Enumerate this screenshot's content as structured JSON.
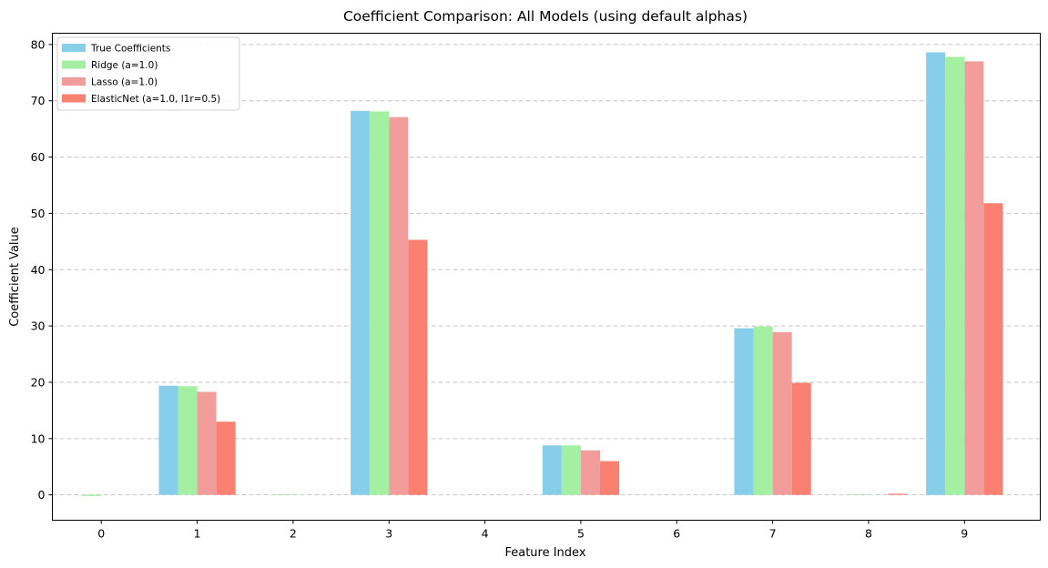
{
  "chart_data": {
    "type": "bar",
    "title": "Coefficient Comparison: All Models (using default alphas)",
    "xlabel": "Feature Index",
    "ylabel": "Coefficient Value",
    "categories": [
      "0",
      "1",
      "2",
      "3",
      "4",
      "5",
      "6",
      "7",
      "8",
      "9"
    ],
    "ylim": [
      -4.5,
      82
    ],
    "yticks": [
      0,
      10,
      20,
      30,
      40,
      50,
      60,
      70,
      80
    ],
    "grid": "y",
    "legend_position": "top-left",
    "series": [
      {
        "name": "True Coefficients",
        "color": "#87ceeb",
        "values": [
          0,
          19.4,
          0,
          68.2,
          0,
          8.8,
          0,
          29.6,
          0,
          78.6
        ]
      },
      {
        "name": "Ridge (a=1.0)",
        "color": "#a3f0a3",
        "values": [
          -0.2,
          19.3,
          0.1,
          68.1,
          0,
          8.8,
          0,
          29.9,
          0.1,
          77.8
        ]
      },
      {
        "name": "Lasso (a=1.0)",
        "color": "#f39c9c",
        "values": [
          0,
          18.3,
          0,
          67.1,
          0,
          7.9,
          0,
          28.9,
          0,
          77.0
        ]
      },
      {
        "name": "ElasticNet (a=1.0, l1r=0.5)",
        "color": "#fa8072",
        "values": [
          0,
          13.0,
          0,
          45.3,
          0,
          6.0,
          0,
          19.9,
          0.2,
          51.8
        ]
      }
    ]
  }
}
